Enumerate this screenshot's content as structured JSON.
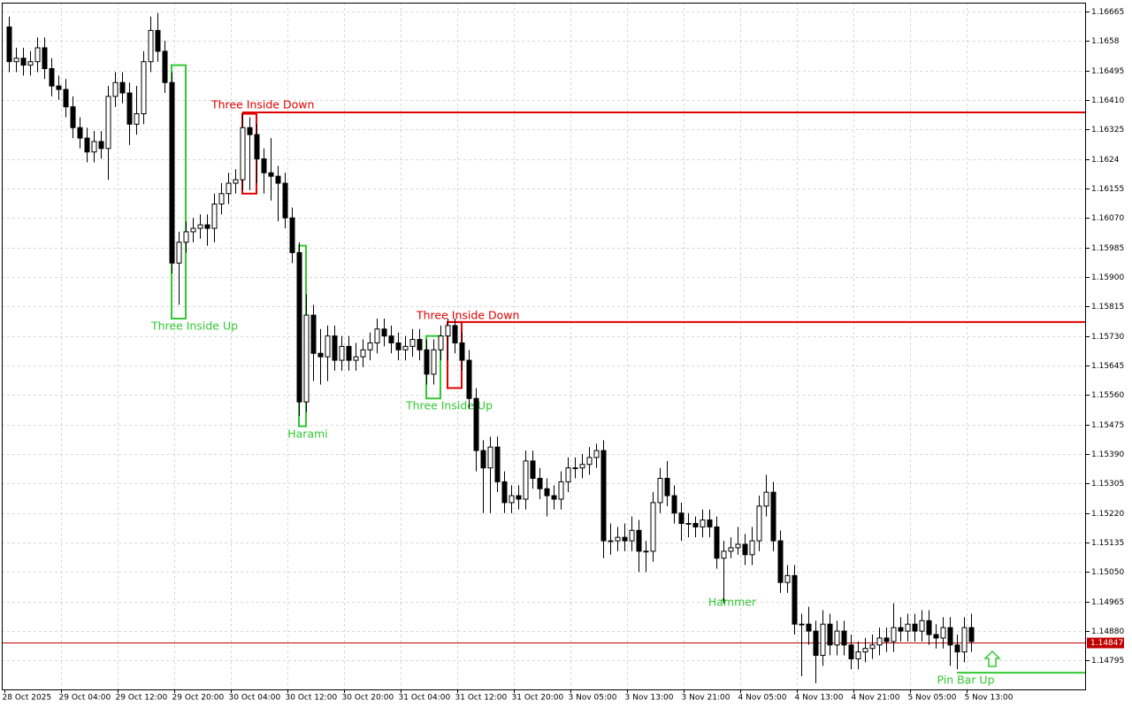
{
  "chart_data": {
    "type": "candlestick",
    "up_color": "#ffffff",
    "down_color": "#000000",
    "outline_color": "#000000",
    "grid": true,
    "open": [
      1.1662,
      1.1652,
      1.1653,
      1.1651,
      1.1652,
      1.1656,
      1.165,
      1.1645,
      1.1644,
      1.1639,
      1.1633,
      1.163,
      1.1626,
      1.1629,
      1.1627,
      1.1642,
      1.1646,
      1.1643,
      1.1634,
      1.1637,
      1.1652,
      1.1661,
      1.1655,
      1.1646,
      1.1594,
      1.16,
      1.1603,
      1.1604,
      1.1605,
      1.1604,
      1.1611,
      1.1614,
      1.1617,
      1.1618,
      1.1633,
      1.1631,
      1.1624,
      1.162,
      1.1619,
      1.1617,
      1.1607,
      1.1597,
      1.1554,
      1.1579,
      1.1568,
      1.1567,
      1.1573,
      1.1566,
      1.157,
      1.1566,
      1.1567,
      1.1569,
      1.1571,
      1.1575,
      1.1573,
      1.1571,
      1.1569,
      1.157,
      1.1572,
      1.1569,
      1.1562,
      1.1569,
      1.1573,
      1.1576,
      1.1571,
      1.1566,
      1.1555,
      1.154,
      1.1535,
      1.1541,
      1.1531,
      1.1525,
      1.1527,
      1.1526,
      1.1537,
      1.1532,
      1.1529,
      1.1527,
      1.1526,
      1.1531,
      1.1535,
      1.1535,
      1.1536,
      1.1538,
      1.154,
      1.1514,
      1.1514,
      1.1515,
      1.1514,
      1.1517,
      1.1511,
      1.1511,
      1.1525,
      1.1532,
      1.1527,
      1.1522,
      1.1519,
      1.1519,
      1.1518,
      1.152,
      1.1518,
      1.1509,
      1.1511,
      1.1512,
      1.1513,
      1.151,
      1.1514,
      1.1524,
      1.1528,
      1.1514,
      1.1502,
      1.1504,
      1.149,
      1.149,
      1.1488,
      1.1481,
      1.149,
      1.1484,
      1.1488,
      1.1484,
      1.148,
      1.1482,
      1.1483,
      1.1484,
      1.1486,
      1.1485,
      1.1489,
      1.1488,
      1.149,
      1.1488,
      1.1491,
      1.1487,
      1.1486,
      1.1489,
      1.1484,
      1.1482,
      1.1489
    ],
    "high": [
      1.1665,
      1.1656,
      1.1656,
      1.1655,
      1.1659,
      1.1659,
      1.1653,
      1.1648,
      1.1647,
      1.1642,
      1.1636,
      1.1633,
      1.1632,
      1.1632,
      1.1645,
      1.1649,
      1.1649,
      1.1646,
      1.1645,
      1.1655,
      1.1665,
      1.1666,
      1.1658,
      1.1649,
      1.1603,
      1.1606,
      1.1607,
      1.1608,
      1.1608,
      1.1614,
      1.1617,
      1.162,
      1.1621,
      1.1637,
      1.1636,
      1.1634,
      1.1627,
      1.163,
      1.1622,
      1.162,
      1.161,
      1.16,
      1.1585,
      1.1582,
      1.1575,
      1.1576,
      1.1576,
      1.1573,
      1.1573,
      1.1571,
      1.1572,
      1.1574,
      1.1578,
      1.1578,
      1.1576,
      1.1574,
      1.1573,
      1.1575,
      1.1575,
      1.1572,
      1.1572,
      1.1576,
      1.1578,
      1.1578,
      1.1574,
      1.1569,
      1.1558,
      1.1543,
      1.1544,
      1.1544,
      1.1534,
      1.153,
      1.153,
      1.154,
      1.154,
      1.1535,
      1.1532,
      1.153,
      1.1534,
      1.1538,
      1.1538,
      1.1539,
      1.1541,
      1.1542,
      1.1543,
      1.1519,
      1.1518,
      1.1519,
      1.1521,
      1.152,
      1.1514,
      1.1528,
      1.1535,
      1.1537,
      1.153,
      1.1525,
      1.1522,
      1.1521,
      1.1523,
      1.1523,
      1.1521,
      1.1514,
      1.1515,
      1.1518,
      1.1516,
      1.1518,
      1.1527,
      1.1533,
      1.1531,
      1.1517,
      1.1507,
      1.1507,
      1.1493,
      1.1495,
      1.1491,
      1.1494,
      1.1493,
      1.1491,
      1.1491,
      1.1487,
      1.1485,
      1.1486,
      1.1487,
      1.1489,
      1.1489,
      1.1496,
      1.1492,
      1.1493,
      1.1493,
      1.1494,
      1.1494,
      1.149,
      1.1492,
      1.1492,
      1.1487,
      1.1492,
      1.1493
    ],
    "low": [
      1.1649,
      1.1649,
      1.1648,
      1.1648,
      1.1649,
      1.1647,
      1.1642,
      1.1641,
      1.1636,
      1.163,
      1.1627,
      1.1623,
      1.1623,
      1.1624,
      1.1618,
      1.1639,
      1.164,
      1.1628,
      1.1631,
      1.1634,
      1.1649,
      1.1652,
      1.1643,
      1.1591,
      1.1582,
      1.1597,
      1.16,
      1.1601,
      1.1599,
      1.16,
      1.1608,
      1.1611,
      1.1614,
      1.1615,
      1.1615,
      1.1617,
      1.1614,
      1.1612,
      1.1606,
      1.1604,
      1.1594,
      1.155,
      1.1551,
      1.156,
      1.1559,
      1.156,
      1.1563,
      1.1563,
      1.1563,
      1.1563,
      1.1564,
      1.1566,
      1.1568,
      1.157,
      1.1568,
      1.1566,
      1.1566,
      1.1567,
      1.1566,
      1.1559,
      1.1559,
      1.1566,
      1.1566,
      1.1568,
      1.1563,
      1.1552,
      1.1534,
      1.1522,
      1.1522,
      1.1528,
      1.1522,
      1.1522,
      1.1523,
      1.1523,
      1.1529,
      1.1526,
      1.1521,
      1.1523,
      1.1523,
      1.1528,
      1.1532,
      1.1532,
      1.1533,
      1.1535,
      1.1509,
      1.151,
      1.1511,
      1.1511,
      1.1511,
      1.1505,
      1.1505,
      1.1508,
      1.1522,
      1.1524,
      1.1519,
      1.1514,
      1.1515,
      1.1515,
      1.1515,
      1.1515,
      1.1506,
      1.1496,
      1.1509,
      1.151,
      1.1507,
      1.1507,
      1.1511,
      1.1521,
      1.1511,
      1.1499,
      1.1499,
      1.1487,
      1.1475,
      1.1484,
      1.1473,
      1.1478,
      1.1481,
      1.1481,
      1.1481,
      1.1477,
      1.1477,
      1.1479,
      1.148,
      1.1481,
      1.1482,
      1.1482,
      1.1485,
      1.1485,
      1.1485,
      1.1485,
      1.1484,
      1.1483,
      1.1483,
      1.1478,
      1.1477,
      1.1479,
      1.1482
    ],
    "close": [
      1.1652,
      1.1653,
      1.1651,
      1.1652,
      1.1656,
      1.165,
      1.1645,
      1.1644,
      1.1639,
      1.1633,
      1.163,
      1.1626,
      1.1629,
      1.1627,
      1.1642,
      1.1646,
      1.1643,
      1.1634,
      1.1637,
      1.1652,
      1.1661,
      1.1655,
      1.1646,
      1.1594,
      1.16,
      1.1603,
      1.1604,
      1.1605,
      1.1604,
      1.1611,
      1.1614,
      1.1617,
      1.1618,
      1.1633,
      1.1631,
      1.1624,
      1.162,
      1.1619,
      1.1617,
      1.1607,
      1.1597,
      1.1554,
      1.1579,
      1.1568,
      1.1567,
      1.1573,
      1.1566,
      1.157,
      1.1566,
      1.1567,
      1.1569,
      1.1571,
      1.1575,
      1.1573,
      1.1571,
      1.1569,
      1.157,
      1.1572,
      1.1569,
      1.1562,
      1.1569,
      1.1573,
      1.1576,
      1.1571,
      1.1566,
      1.1555,
      1.154,
      1.1535,
      1.1541,
      1.1531,
      1.1525,
      1.1527,
      1.1526,
      1.1537,
      1.1532,
      1.1529,
      1.1527,
      1.1526,
      1.1531,
      1.1535,
      1.1535,
      1.1536,
      1.1538,
      1.154,
      1.1514,
      1.1514,
      1.1515,
      1.1514,
      1.1517,
      1.1511,
      1.1511,
      1.1525,
      1.1532,
      1.1527,
      1.1522,
      1.1519,
      1.1519,
      1.1518,
      1.152,
      1.1518,
      1.1509,
      1.1511,
      1.1512,
      1.1513,
      1.151,
      1.1514,
      1.1524,
      1.1528,
      1.1514,
      1.1502,
      1.1504,
      1.149,
      1.149,
      1.1488,
      1.1481,
      1.149,
      1.1484,
      1.1488,
      1.1484,
      1.148,
      1.1482,
      1.1483,
      1.1484,
      1.1486,
      1.1485,
      1.1489,
      1.1488,
      1.149,
      1.1488,
      1.1491,
      1.1487,
      1.1486,
      1.1489,
      1.1484,
      1.1482,
      1.1489,
      1.1485
    ],
    "x_labels": [
      "28 Oct 2025",
      "29 Oct 04:00",
      "29 Oct 12:00",
      "29 Oct 20:00",
      "30 Oct 04:00",
      "30 Oct 12:00",
      "30 Oct 20:00",
      "31 Oct 04:00",
      "31 Oct 12:00",
      "31 Oct 20:00",
      "3 Nov 05:00",
      "3 Nov 13:00",
      "3 Nov 21:00",
      "4 Nov 05:00",
      "4 Nov 13:00",
      "4 Nov 21:00",
      "5 Nov 05:00",
      "5 Nov 13:00"
    ],
    "ylim": [
      1.14712,
      1.1669
    ],
    "yticks": [
      1.16665,
      1.1658,
      1.16495,
      {
        "value": 1.1641,
        "label": "1.16410"
      },
      1.16325,
      1.1624,
      1.16155,
      {
        "value": 1.1607,
        "label": "1.16070"
      },
      1.15985,
      {
        "value": 1.159,
        "label": "1.15900"
      },
      1.15815,
      {
        "value": 1.1573,
        "label": "1.15730"
      },
      1.15645,
      {
        "value": 1.1556,
        "label": "1.15560"
      },
      1.15475,
      {
        "value": 1.1539,
        "label": "1.15390"
      },
      1.15305,
      {
        "value": 1.1522,
        "label": "1.15220"
      },
      1.15135,
      {
        "value": 1.1505,
        "label": "1.15050"
      },
      1.14965,
      {
        "value": 1.1488,
        "label": "1.14880"
      },
      1.14795
    ],
    "last_price": 1.14847,
    "last_price_color": "#c00000",
    "patterns": [
      {
        "label": "Three Inside Up",
        "color": "#32c832",
        "high": 1.1651,
        "low": 1.1578
      },
      {
        "label": "Three Inside Down",
        "color": "#e00000",
        "high": 1.1637,
        "low": 1.1614,
        "level": 1.16374
      },
      {
        "label": "Harami",
        "color": "#32c832",
        "high": 1.1599,
        "low": 1.1547
      },
      {
        "label": "Three Inside Up",
        "color": "#32c832",
        "high": 1.1573,
        "low": 1.1555
      },
      {
        "label": "Three Inside Down",
        "color": "#e00000",
        "high": 1.1577,
        "low": 1.1558,
        "level": 1.1577
      },
      {
        "label": "Hammer",
        "color": "#32c832"
      },
      {
        "label": "Pin Bar Up",
        "color": "#32c832",
        "level": 1.1476
      }
    ]
  }
}
